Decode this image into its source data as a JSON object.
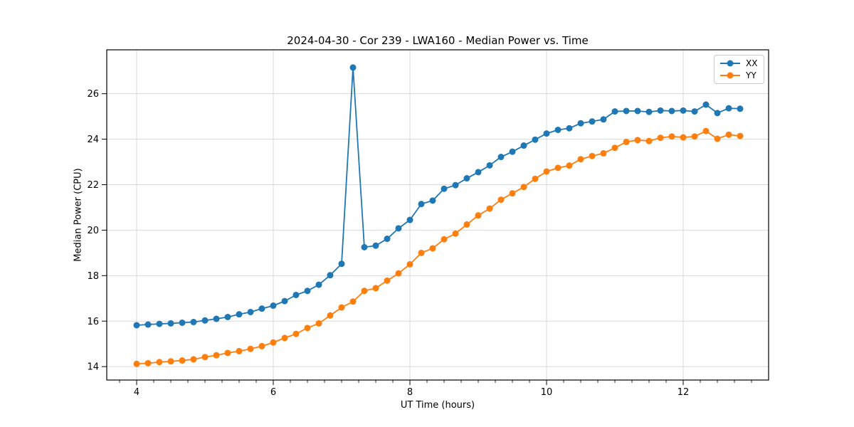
{
  "chart_data": {
    "type": "line",
    "title": "2024-04-30 - Cor 239 - LWA160 - Median Power vs. Time",
    "xlabel": "UT Time (hours)",
    "ylabel": "Median Power (CPU)",
    "xlim": [
      3.5625,
      13.25
    ],
    "ylim": [
      13.41,
      27.93
    ],
    "xticks": [
      4,
      6,
      8,
      10,
      12
    ],
    "yticks": [
      14,
      16,
      18,
      20,
      22,
      24,
      26
    ],
    "x_minor_tick_interval": 0.25,
    "grid": true,
    "grid_color": "#d9d9d9",
    "spine_color": "#000000",
    "legend_position": "upper right",
    "x": [
      4.0,
      4.167,
      4.333,
      4.5,
      4.667,
      4.833,
      5.0,
      5.167,
      5.333,
      5.5,
      5.667,
      5.833,
      6.0,
      6.167,
      6.333,
      6.5,
      6.667,
      6.833,
      7.0,
      7.167,
      7.333,
      7.5,
      7.667,
      7.833,
      8.0,
      8.167,
      8.333,
      8.5,
      8.667,
      8.833,
      9.0,
      9.167,
      9.333,
      9.5,
      9.667,
      9.833,
      10.0,
      10.167,
      10.333,
      10.5,
      10.667,
      10.833,
      11.0,
      11.167,
      11.333,
      11.5,
      11.667,
      11.833,
      12.0,
      12.167,
      12.333,
      12.5,
      12.667,
      12.833
    ],
    "series": [
      {
        "name": "XX",
        "color": "#1f77b4",
        "values": [
          15.82,
          15.85,
          15.88,
          15.9,
          15.93,
          15.96,
          16.03,
          16.1,
          16.18,
          16.3,
          16.4,
          16.55,
          16.68,
          16.88,
          17.15,
          17.33,
          17.6,
          18.02,
          18.52,
          27.15,
          19.25,
          19.32,
          19.62,
          20.08,
          20.45,
          21.15,
          21.3,
          21.82,
          21.98,
          22.28,
          22.55,
          22.85,
          23.22,
          23.45,
          23.72,
          23.98,
          24.25,
          24.41,
          24.48,
          24.7,
          24.78,
          24.87,
          25.22,
          25.24,
          25.24,
          25.2,
          25.26,
          25.24,
          25.26,
          25.22,
          25.52,
          25.15,
          25.36,
          25.34
        ]
      },
      {
        "name": "YY",
        "color": "#ff7f0e",
        "values": [
          14.12,
          14.15,
          14.2,
          14.23,
          14.27,
          14.32,
          14.42,
          14.5,
          14.6,
          14.68,
          14.78,
          14.9,
          15.06,
          15.26,
          15.44,
          15.7,
          15.9,
          16.25,
          16.6,
          16.86,
          17.33,
          17.45,
          17.78,
          18.1,
          18.5,
          19.0,
          19.2,
          19.6,
          19.85,
          20.25,
          20.65,
          20.95,
          21.34,
          21.62,
          21.9,
          22.26,
          22.58,
          22.74,
          22.84,
          23.12,
          23.26,
          23.38,
          23.62,
          23.88,
          23.96,
          23.92,
          24.06,
          24.12,
          24.08,
          24.12,
          24.36,
          24.02,
          24.2,
          24.14
        ]
      }
    ]
  }
}
